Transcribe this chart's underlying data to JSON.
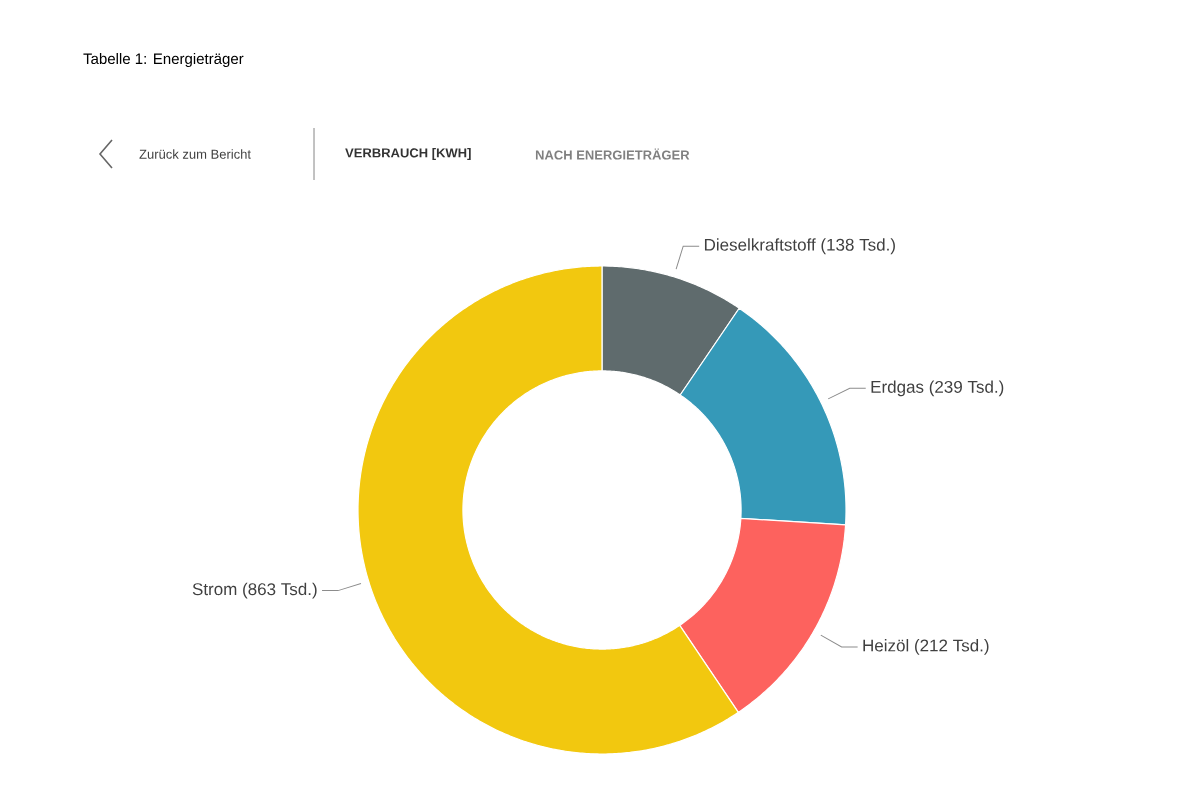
{
  "chart_data": {
    "type": "donut",
    "title": "Tabelle 1: Energieträger",
    "annotations": [
      "Zurück zum Bericht",
      "VERBRAUCH [KWH]",
      "NACH ENERGIETRÄGER"
    ],
    "categories": [
      "Dieselkraftstoff (138 Tsd.)",
      "Erdgas (239 Tsd.)",
      "Heizöl (212 Tsd.)",
      "Strom (863 Tsd.)"
    ],
    "values": [
      138,
      239,
      212,
      863
    ],
    "colors": [
      "#5f6b6d",
      "#3599b8",
      "#fd625e",
      "#f2c80f"
    ]
  }
}
